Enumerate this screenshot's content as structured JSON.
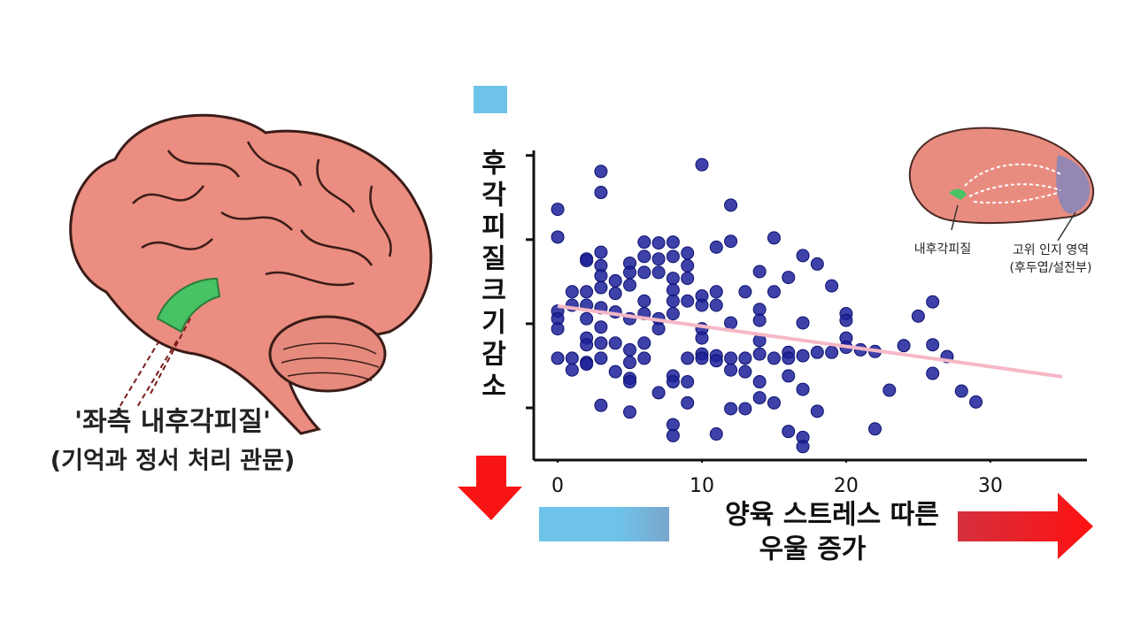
{
  "chart_data": {
    "type": "scatter",
    "ylabel": "후각피질크기감소",
    "xlabel": [
      "양육 스트레스 따른",
      "우울 증가"
    ],
    "x": [
      0,
      0,
      0,
      0,
      0,
      0,
      1,
      1,
      1,
      1,
      2,
      2,
      2,
      2,
      2,
      2,
      2,
      2,
      2,
      3,
      3,
      3,
      3,
      3,
      3,
      3,
      3,
      3,
      3,
      3,
      4,
      4,
      4,
      4,
      4,
      5,
      5,
      5,
      5,
      5,
      5,
      5,
      5,
      5,
      6,
      6,
      6,
      6,
      6,
      6,
      6,
      7,
      7,
      7,
      7,
      7,
      7,
      8,
      8,
      8,
      8,
      8,
      8,
      8,
      8,
      8,
      8,
      9,
      9,
      9,
      9,
      9,
      9,
      9,
      10,
      10,
      10,
      10,
      10,
      10,
      10,
      11,
      11,
      11,
      11,
      11,
      11,
      12,
      12,
      12,
      12,
      12,
      12,
      13,
      13,
      13,
      13,
      14,
      14,
      14,
      14,
      14,
      14,
      14,
      15,
      15,
      15,
      15,
      16,
      16,
      16,
      16,
      16,
      17,
      17,
      17,
      17,
      17,
      17,
      18,
      18,
      18,
      19,
      19,
      20,
      20,
      20,
      20,
      21,
      22,
      22,
      23,
      24,
      25,
      26,
      26,
      26,
      27,
      28,
      29
    ],
    "y": [
      3.36,
      3.03,
      2.15,
      2.06,
      1.94,
      1.59,
      2.38,
      2.22,
      1.59,
      1.45,
      2.77,
      2.75,
      2.38,
      2.22,
      2.06,
      1.83,
      1.75,
      1.54,
      1.52,
      3.81,
      3.56,
      2.85,
      2.69,
      2.57,
      2.43,
      2.19,
      1.96,
      1.77,
      1.59,
      1.03,
      2.51,
      2.36,
      2.14,
      1.77,
      1.43,
      2.72,
      2.61,
      2.46,
      2.06,
      1.69,
      1.54,
      1.35,
      1.31,
      0.95,
      2.97,
      2.8,
      2.61,
      2.27,
      2.12,
      1.77,
      1.59,
      2.96,
      2.77,
      2.61,
      2.06,
      1.94,
      1.18,
      2.97,
      2.8,
      2.54,
      2.4,
      2.27,
      2.12,
      1.38,
      1.31,
      0.8,
      0.67,
      2.84,
      2.69,
      2.54,
      2.27,
      1.59,
      1.31,
      1.06,
      3.89,
      2.33,
      2.22,
      1.94,
      1.83,
      1.64,
      1.59,
      2.91,
      2.38,
      2.22,
      1.62,
      1.56,
      0.69,
      3.41,
      2.98,
      2.01,
      1.59,
      1.45,
      0.99,
      2.38,
      1.59,
      1.43,
      0.99,
      2.62,
      2.17,
      2.04,
      1.8,
      1.64,
      1.31,
      1.12,
      3.02,
      2.38,
      1.59,
      1.06,
      2.55,
      1.66,
      1.59,
      1.38,
      0.72,
      2.81,
      2.01,
      1.62,
      1.22,
      0.65,
      0.54,
      2.71,
      1.66,
      0.96,
      2.45,
      1.66,
      2.12,
      2.04,
      1.83,
      1.72,
      1.69,
      1.67,
      0.75,
      1.21,
      1.74,
      2.09,
      2.26,
      1.75,
      1.41,
      1.61,
      1.2,
      1.07
    ],
    "color": "#1c2199",
    "trend_line": {
      "x": [
        0,
        35
      ],
      "y": [
        2.21,
        1.37
      ],
      "color": "#f5b8c6"
    },
    "xlim": [
      -1.66,
      36.7
    ],
    "ylim": [
      0.38,
      4.06
    ],
    "xticks": [
      0,
      10,
      20,
      30
    ],
    "yticks": [
      1,
      2,
      3,
      4
    ]
  },
  "caption": {
    "title": "'좌측 내후각피질'",
    "subtitle": "(기억과 정서 처리 관문)"
  },
  "inset": {
    "left_label": "내후각피질",
    "right_label": "고위 인지 영역",
    "right_sublabel": "(후두엽/설전부)"
  }
}
